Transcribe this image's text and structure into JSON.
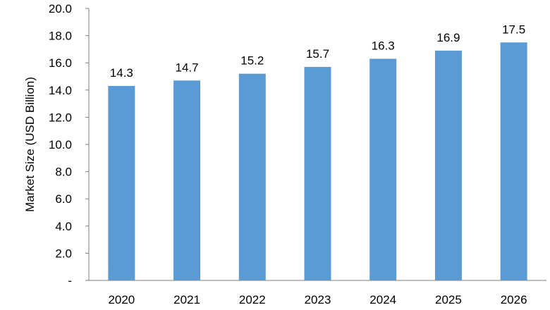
{
  "chart_data": {
    "type": "bar",
    "title": "",
    "xlabel": "",
    "ylabel": "Market Size (USD Billion)",
    "categories": [
      "2020",
      "2021",
      "2022",
      "2023",
      "2024",
      "2025",
      "2026"
    ],
    "values": [
      14.3,
      14.7,
      15.2,
      15.7,
      16.3,
      16.9,
      17.5
    ],
    "data_labels": [
      "14.3",
      "14.7",
      "15.2",
      "15.7",
      "16.3",
      "16.9",
      "17.5"
    ],
    "ylim": [
      0,
      20
    ],
    "yticks": [
      0,
      2,
      4,
      6,
      8,
      10,
      12,
      14,
      16,
      18,
      20
    ],
    "ytick_labels": [
      "-",
      "2.0",
      "4.0",
      "6.0",
      "8.0",
      "10.0",
      "12.0",
      "14.0",
      "16.0",
      "18.0",
      "20.0"
    ],
    "grid": false,
    "legend": "none",
    "bar_color": "#5B9BD5",
    "axis_color": "#7F7F7F"
  }
}
